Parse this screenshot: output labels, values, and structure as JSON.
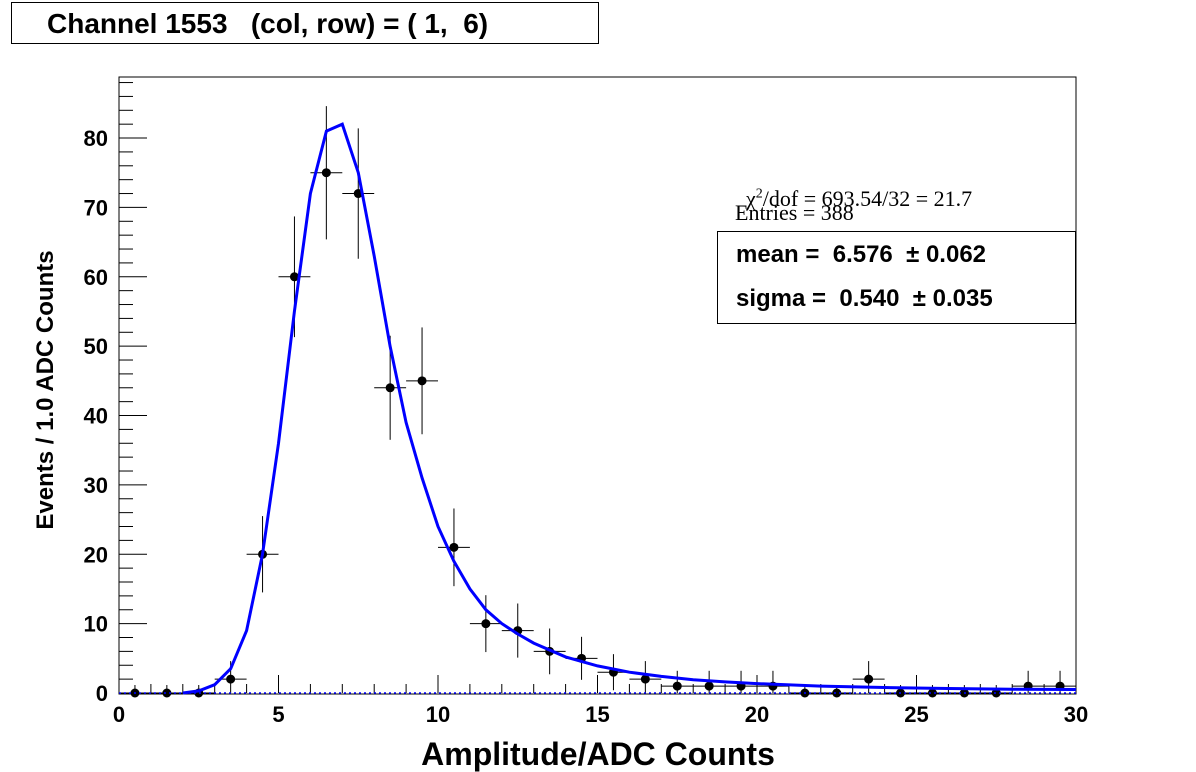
{
  "title": "Channel 1553   (col, row) = ( 1,  6)",
  "stats": {
    "chi2_prefix": "χ",
    "chi2_sup": "2",
    "chi2_rest": "/dof = 693.54/32 = 21.7",
    "entries": "Entries = 388"
  },
  "fit": {
    "mean_label": "mean =  6.576  ± 0.062",
    "sigma_label": "sigma =  0.540  ± 0.035"
  },
  "colors": {
    "fit_curve": "#0000ff",
    "points": "#000000",
    "axis": "#000000"
  },
  "chart_data": {
    "type": "scatter",
    "title": "Channel 1553   (col, row) = ( 1,  6)",
    "xlabel": "Amplitude/ADC Counts",
    "ylabel": "Events / 1.0 ADC Counts",
    "xlim": [
      0,
      30
    ],
    "ylim": [
      0,
      88.8
    ],
    "x_ticks": [
      0,
      5,
      10,
      15,
      20,
      25,
      30
    ],
    "y_ticks": [
      0,
      10,
      20,
      30,
      40,
      50,
      60,
      70,
      80
    ],
    "x_tick_labels": [
      "0",
      "5",
      "10",
      "15",
      "20",
      "25",
      "30"
    ],
    "y_tick_labels": [
      "0",
      "10",
      "20",
      "30",
      "40",
      "50",
      "60",
      "70",
      "80"
    ],
    "grid": false,
    "legend": "none",
    "series": [
      {
        "x": [
          0.5,
          1.5,
          2.5,
          3.5,
          4.5,
          5.5,
          6.5,
          7.5,
          8.5,
          9.5,
          10.5,
          11.5,
          12.5,
          13.5,
          14.5,
          15.5,
          16.5,
          17.5,
          18.5,
          19.5,
          20.5,
          21.5,
          22.5,
          23.5,
          24.5,
          25.5,
          26.5,
          27.5,
          28.5,
          29.5
        ],
        "y": [
          0,
          0,
          0,
          2,
          20,
          60,
          75,
          72,
          44,
          45,
          21,
          10,
          9,
          6,
          5,
          3,
          2,
          1,
          1,
          1,
          1,
          0,
          0,
          2,
          0,
          0,
          0,
          0,
          1,
          1
        ],
        "x_error": 0.5,
        "y_error": [
          1.15,
          1.15,
          1.15,
          2.6,
          5.5,
          8.7,
          9.6,
          9.4,
          7.5,
          7.7,
          5.6,
          4.1,
          3.9,
          3.3,
          3.1,
          2.6,
          2.6,
          2.2,
          2.2,
          2.2,
          2.2,
          1.15,
          1.15,
          2.6,
          1.15,
          1.15,
          1.15,
          1.15,
          2.2,
          2.2
        ]
      }
    ],
    "fit_curve": {
      "x": [
        2.0,
        2.5,
        3.0,
        3.5,
        4.0,
        4.5,
        5.0,
        5.5,
        6.0,
        6.5,
        7.0,
        7.5,
        8.0,
        8.5,
        9.0,
        9.5,
        10.0,
        10.5,
        11.0,
        11.5,
        12.0,
        12.5,
        13.0,
        14.0,
        15.0,
        16.0,
        17.0,
        18.0,
        19.0,
        20.0,
        22.0,
        24.0,
        26.0,
        28.0,
        30.0
      ],
      "y": [
        0,
        0.3,
        1.2,
        3.5,
        9,
        20,
        36,
        55,
        72,
        81,
        82,
        75,
        63,
        50,
        39,
        31,
        24,
        19,
        15,
        12,
        10,
        8.5,
        7.2,
        5.2,
        3.9,
        3.0,
        2.4,
        1.9,
        1.6,
        1.35,
        1.0,
        0.8,
        0.65,
        0.55,
        0.5
      ]
    }
  }
}
